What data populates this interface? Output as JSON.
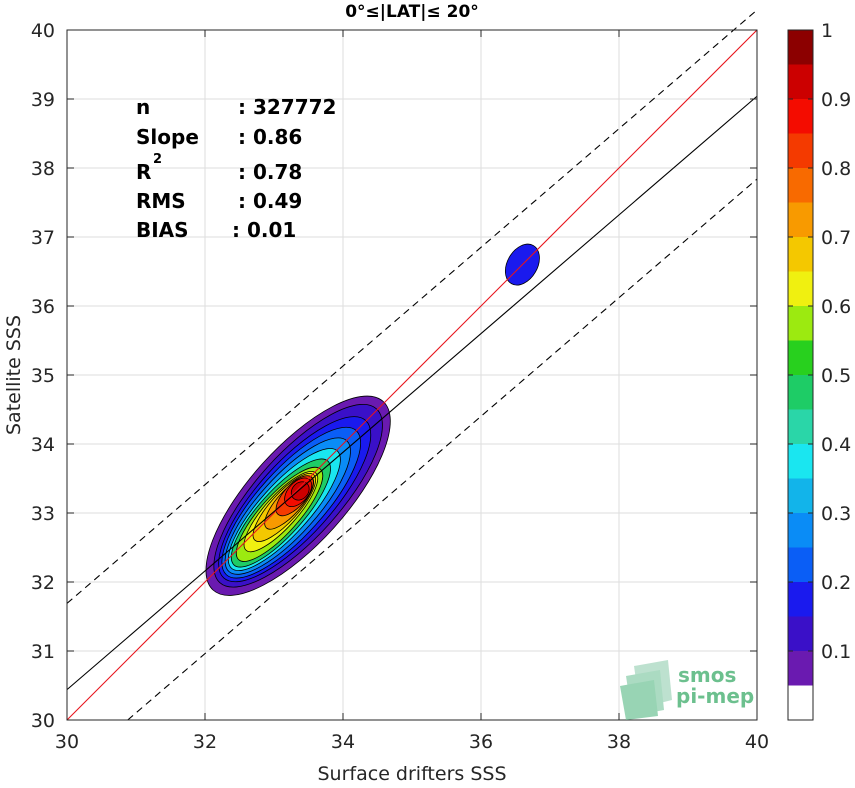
{
  "chart_data": {
    "type": "contour-density",
    "title": "0°≤|LAT|≤ 20°",
    "xlabel": "Surface drifters SSS",
    "ylabel": "Satellite SSS",
    "xlim": [
      30,
      40
    ],
    "ylim": [
      30,
      40
    ],
    "x_ticks": [
      30,
      32,
      34,
      36,
      38,
      40
    ],
    "y_ticks": [
      30,
      31,
      32,
      33,
      34,
      35,
      36,
      37,
      38,
      39,
      40
    ],
    "grid": true,
    "stats": [
      {
        "label": "n",
        "value": ": 327772"
      },
      {
        "label": "Slope",
        "value": ": 0.86"
      },
      {
        "label": "R",
        "sup": "2",
        "value": ": 0.78"
      },
      {
        "label": "RMS",
        "value": ": 0.49"
      },
      {
        "label": "BIAS",
        "value": ": 0.01"
      }
    ],
    "lines": [
      {
        "name": "identity",
        "color": "#e8141c",
        "style": "solid",
        "points": [
          [
            30,
            30
          ],
          [
            40,
            40
          ]
        ]
      },
      {
        "name": "regression",
        "color": "#000000",
        "style": "solid",
        "points": [
          [
            30,
            30.44
          ],
          [
            40,
            39.04
          ]
        ]
      },
      {
        "name": "upper-bound",
        "color": "#000000",
        "style": "dashed",
        "points": [
          [
            30,
            31.69
          ],
          [
            40,
            40.29
          ]
        ]
      },
      {
        "name": "lower-bound",
        "color": "#000000",
        "style": "dashed",
        "points": [
          [
            30.88,
            30.0
          ],
          [
            40,
            37.84
          ]
        ]
      }
    ],
    "density_peak": {
      "x": 33.35,
      "y": 33.3
    },
    "secondary_cluster": {
      "x": 36.6,
      "y": 36.6
    },
    "colorbar": {
      "ticks": [
        0.1,
        0.2,
        0.3,
        0.4,
        0.5,
        0.6,
        0.7,
        0.8,
        0.9,
        1
      ],
      "tick_labels": [
        "0.1",
        "0.2",
        "0.3",
        "0.4",
        "0.5",
        "0.6",
        "0.7",
        "0.8",
        "0.9",
        "1"
      ],
      "levels": [
        0.05,
        0.1,
        0.15,
        0.2,
        0.25,
        0.3,
        0.35,
        0.4,
        0.45,
        0.5,
        0.55,
        0.6,
        0.65,
        0.7,
        0.75,
        0.8,
        0.85,
        0.9,
        0.95,
        1.0
      ],
      "colors": [
        "#ffffff",
        "#6a1ab0",
        "#3a10c8",
        "#1a1aee",
        "#0a5ef6",
        "#0a8cf6",
        "#12b4ea",
        "#1ae6f0",
        "#2ad6a8",
        "#1ecc66",
        "#28d01e",
        "#9cea10",
        "#f0f010",
        "#f4c800",
        "#f89a00",
        "#f86a00",
        "#f43a00",
        "#f40c00",
        "#cc0000",
        "#8c0000"
      ]
    },
    "logo": {
      "line1": "smos",
      "line2": "pi-mep"
    }
  }
}
